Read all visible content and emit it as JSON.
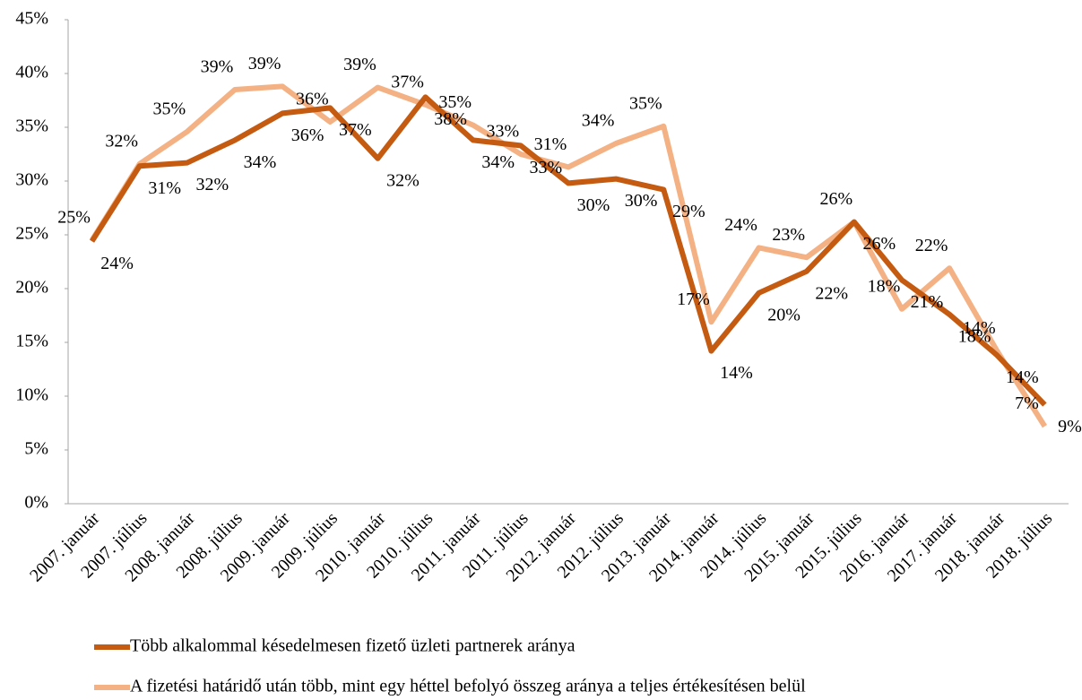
{
  "chart_data": {
    "type": "line",
    "categories": [
      "2007. január",
      "2007. július",
      "2008. január",
      "2008. július",
      "2009. január",
      "2009. július",
      "2010. január",
      "2010. július",
      "2011. január",
      "2011. július",
      "2012. január",
      "2012. július",
      "2013. január",
      "2014. január",
      "2014. július",
      "2015. január",
      "2015. július",
      "2016. január",
      "2017. január",
      "2018. január",
      "2018. július"
    ],
    "series": [
      {
        "name": "Több alkalommal késedelmesen fizető üzleti partnerek aránya",
        "color": "#c55a11",
        "values": [
          24.4,
          31.4,
          31.7,
          33.8,
          36.3,
          36.8,
          32.1,
          37.8,
          33.8,
          33.3,
          29.8,
          30.2,
          29.2,
          14.2,
          19.6,
          21.6,
          26.2,
          20.8,
          17.6,
          13.8,
          9.2
        ],
        "value_labels": [
          "24%",
          "31%",
          "32%",
          "34%",
          "36%",
          "37%",
          "32%",
          "38%",
          "34%",
          "33%",
          "30%",
          "30%",
          "29%",
          "14%",
          "20%",
          "22%",
          "26%",
          "21%",
          "18%",
          "14%",
          "9%"
        ]
      },
      {
        "name": "A fizetési határidő után több, mint egy héttel befolyó összeg aránya a teljes értékesítésen belül",
        "color": "#f4b183",
        "values": [
          24.5,
          31.6,
          34.6,
          38.5,
          38.8,
          35.5,
          38.7,
          37.1,
          35.2,
          32.5,
          31.3,
          33.5,
          35.1,
          16.9,
          23.8,
          22.9,
          26.2,
          18.1,
          21.9,
          14.2,
          7.2
        ],
        "value_labels": [
          "25%",
          "32%",
          "35%",
          "39%",
          "39%",
          "36%",
          "39%",
          "37%",
          "35%",
          "33%",
          "31%",
          "34%",
          "35%",
          "17%",
          "24%",
          "23%",
          "26%",
          "18%",
          "22%",
          "14%",
          "7%"
        ]
      }
    ],
    "ylim": [
      0,
      45
    ],
    "yticks": [
      {
        "value": 0,
        "label": "0%"
      },
      {
        "value": 5,
        "label": "5%"
      },
      {
        "value": 10,
        "label": "10%"
      },
      {
        "value": 15,
        "label": "15%"
      },
      {
        "value": 20,
        "label": "20%"
      },
      {
        "value": 25,
        "label": "25%"
      },
      {
        "value": 30,
        "label": "30%"
      },
      {
        "value": 35,
        "label": "35%"
      },
      {
        "value": 40,
        "label": "40%"
      },
      {
        "value": 45,
        "label": "45%"
      }
    ],
    "grid": false
  }
}
